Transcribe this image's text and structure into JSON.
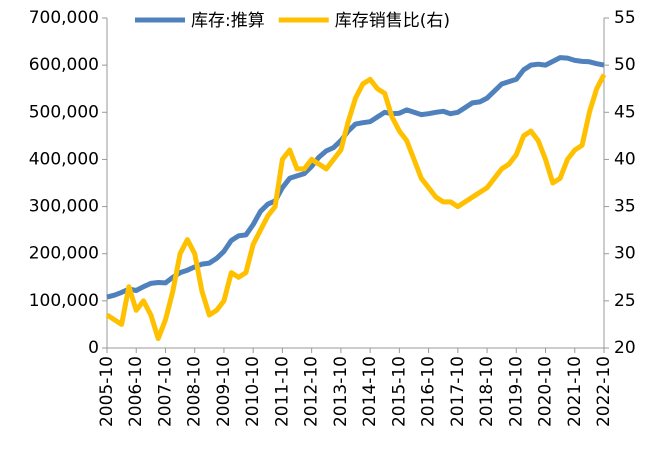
{
  "chart_data": {
    "type": "line",
    "categories": [
      "2005-10",
      null,
      null,
      null,
      "2006-10",
      null,
      null,
      null,
      "2007-10",
      null,
      null,
      null,
      "2008-10",
      null,
      null,
      null,
      "2009-10",
      null,
      null,
      null,
      "2010-10",
      null,
      null,
      null,
      "2011-10",
      null,
      null,
      null,
      "2012-10",
      null,
      null,
      null,
      "2013-10",
      null,
      null,
      null,
      "2014-10",
      null,
      null,
      null,
      "2015-10",
      null,
      null,
      null,
      "2016-10",
      null,
      null,
      null,
      "2017-10",
      null,
      null,
      null,
      "2018-10",
      null,
      null,
      null,
      "2019-10",
      null,
      null,
      null,
      "2020-10",
      null,
      null,
      null,
      "2021-10",
      null,
      null,
      null,
      "2022-10"
    ],
    "series": [
      {
        "name": "库存:推算",
        "color": "#4f81bd",
        "values": [
          108000,
          112000,
          118000,
          125000,
          122000,
          130000,
          137000,
          139000,
          138000,
          150000,
          160000,
          165000,
          172000,
          178000,
          180000,
          190000,
          205000,
          228000,
          238000,
          240000,
          262000,
          290000,
          305000,
          312000,
          340000,
          360000,
          365000,
          370000,
          385000,
          405000,
          418000,
          425000,
          440000,
          460000,
          475000,
          478000,
          480000,
          490000,
          500000,
          497000,
          498000,
          505000,
          500000,
          495000,
          497000,
          500000,
          502000,
          497000,
          500000,
          510000,
          520000,
          522000,
          530000,
          545000,
          560000,
          565000,
          570000,
          590000,
          600000,
          602000,
          600000,
          608000,
          616000,
          615000,
          610000,
          608000,
          607000,
          603000,
          600000
        ]
      },
      {
        "name": "库存销售比(右)",
        "color": "#ffc000",
        "axis": "y2",
        "values": [
          23.5,
          23,
          22.5,
          26.5,
          24,
          25,
          23.5,
          21,
          23,
          26,
          30,
          31.5,
          30,
          26,
          23.5,
          24,
          25,
          28,
          27.5,
          28,
          31,
          32.5,
          34,
          35,
          40,
          41,
          39,
          39,
          40,
          39.5,
          39,
          40,
          41,
          44,
          46.5,
          48,
          48.5,
          47.5,
          47,
          44.5,
          43,
          42,
          40,
          38,
          37,
          36,
          35.5,
          35.5,
          35,
          35.5,
          36,
          36.5,
          37,
          38,
          39,
          39.5,
          40.5,
          42.5,
          43,
          42,
          40,
          37.5,
          38,
          40,
          41,
          41.5,
          45,
          47.5,
          49
        ]
      }
    ],
    "ylim": [
      0,
      700000
    ],
    "yticks": [
      0,
      {
        "value": 100000,
        "label": "100,000"
      },
      {
        "value": 200000,
        "label": "200,000"
      },
      {
        "value": 300000,
        "label": "300,000"
      },
      {
        "value": 400000,
        "label": "400,000"
      },
      {
        "value": 500000,
        "label": "500,000"
      },
      {
        "value": 600000,
        "label": "600,000"
      },
      {
        "value": 700000,
        "label": "700,000"
      }
    ],
    "y2lim": [
      20,
      55
    ],
    "y2ticks": [
      20,
      25,
      30,
      35,
      40,
      45,
      50,
      55
    ],
    "legend": "top"
  }
}
